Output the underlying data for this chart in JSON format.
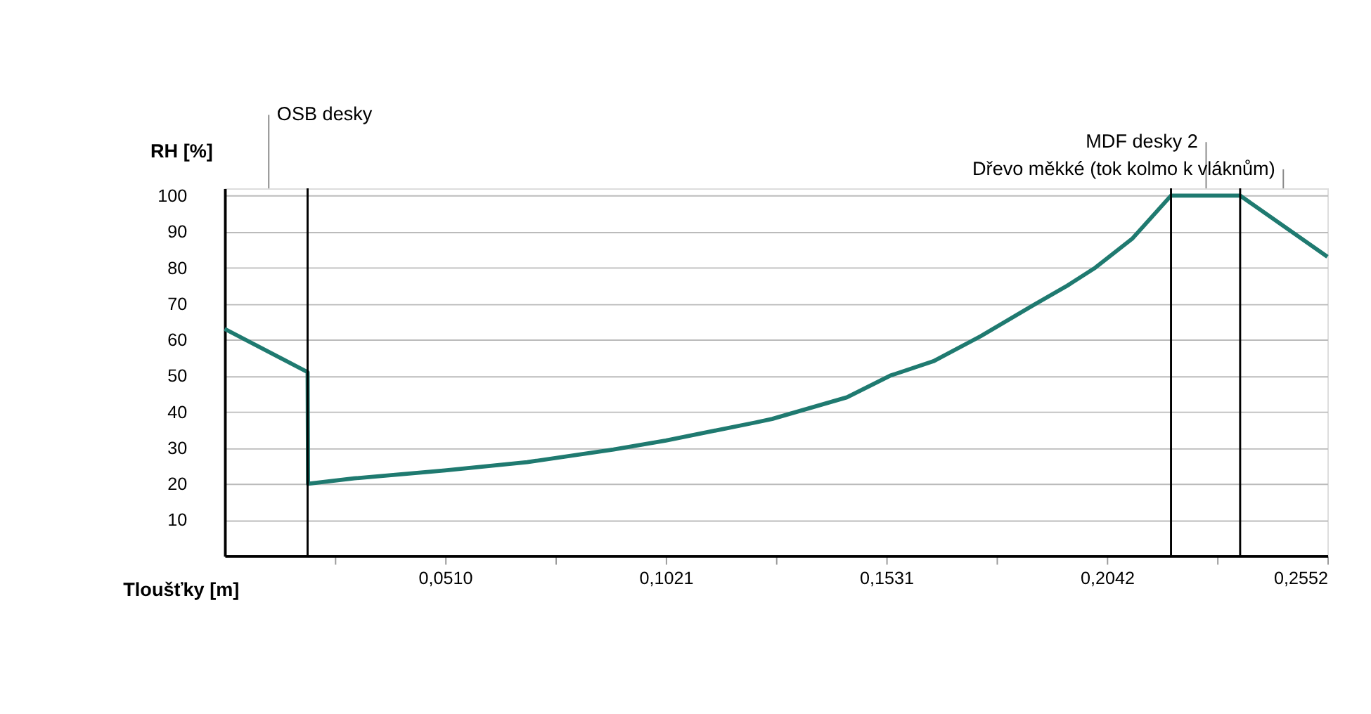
{
  "chart_data": {
    "type": "line",
    "xlabel": "Tloušťky [m]",
    "ylabel": "RH [%]",
    "x": [
      0,
      0.0192,
      0.0193,
      0.03,
      0.051,
      0.07,
      0.09,
      0.1021,
      0.1228,
      0.1267,
      0.144,
      0.154,
      0.164,
      0.175,
      0.187,
      0.195,
      0.2015,
      0.21,
      0.219,
      0.235,
      0.2552
    ],
    "series": [
      {
        "color": "#1f7a70",
        "values": [
          63,
          51,
          20,
          21.5,
          23.7,
          26,
          29.5,
          32,
          37,
          38,
          44,
          50,
          54,
          61,
          69.5,
          75,
          80,
          88,
          100,
          100,
          83
        ]
      }
    ],
    "xlim": [
      0,
      0.2552
    ],
    "ylim": [
      0,
      102
    ],
    "xticks": [
      {
        "value": 0.0255,
        "label": null
      },
      {
        "value": 0.051,
        "label": "0,0510"
      },
      {
        "value": 0.0766,
        "label": null
      },
      {
        "value": 0.1021,
        "label": "0,1021"
      },
      {
        "value": 0.1276,
        "label": null
      },
      {
        "value": 0.1531,
        "label": "0,1531"
      },
      {
        "value": 0.1786,
        "label": null
      },
      {
        "value": 0.2042,
        "label": "0,2042"
      },
      {
        "value": 0.2297,
        "label": null
      },
      {
        "value": 0.2552,
        "label": "0,2552"
      }
    ],
    "yticks": [
      10,
      20,
      30,
      40,
      50,
      60,
      70,
      80,
      90,
      100
    ],
    "grid": "y",
    "marker": "none",
    "line_style": "solid",
    "ref_lines": [
      {
        "axis": "x",
        "value": 0.0192,
        "color": "#000000"
      },
      {
        "axis": "x",
        "value": 0.219,
        "color": "#000000"
      },
      {
        "axis": "x",
        "value": 0.235,
        "color": "#000000"
      }
    ],
    "annotations": [
      "OSB desky",
      "MDF desky 2",
      "Dřevo měkké (tok kolmo k vláknům)"
    ]
  }
}
